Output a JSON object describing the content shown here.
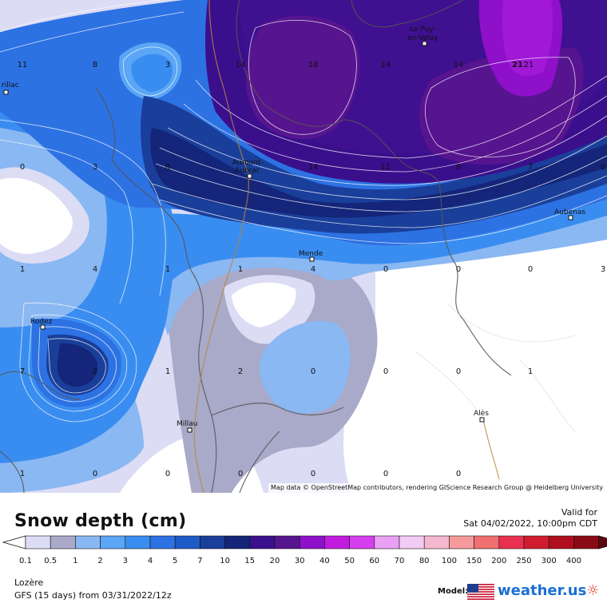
{
  "map": {
    "attribution": "Map data © OpenStreetMap contributors, rendering GIScience Research Group @ Heidelberg University",
    "cities": [
      {
        "name": "Le Puy-",
        "name2": "en-Velay"
      },
      {
        "name": "rillac",
        "name2": ""
      },
      {
        "name": "Aumont-",
        "name2": "Aubrac"
      },
      {
        "name": "Aubenas",
        "name2": ""
      },
      {
        "name": "Mende",
        "name2": ""
      },
      {
        "name": "Rodez",
        "name2": ""
      },
      {
        "name": "Millau",
        "name2": ""
      },
      {
        "name": "Alès",
        "name2": ""
      }
    ],
    "contour_values": [
      "11",
      "8",
      "3",
      "14",
      "18",
      "14",
      "14",
      "21",
      "21",
      "0",
      "3",
      "8",
      "14",
      "11",
      "8",
      "7",
      "0",
      "1",
      "4",
      "1",
      "1",
      "4",
      "0",
      "0",
      "0",
      "3",
      "7",
      "2",
      "1",
      "2",
      "0",
      "0",
      "0",
      "1",
      "1",
      "0",
      "0",
      "0",
      "0",
      "0",
      "0"
    ]
  },
  "legend": {
    "title": "Snow depth (cm)",
    "valid_for": "Valid for",
    "valid_time": "Sat 04/02/2022, 10:00pm CDT",
    "scale": [
      "0.1",
      "0.5",
      "1",
      "2",
      "3",
      "4",
      "5",
      "7",
      "10",
      "15",
      "20",
      "30",
      "40",
      "50",
      "60",
      "70",
      "80",
      "100",
      "150",
      "200",
      "250",
      "300",
      "400"
    ],
    "colors": [
      "#dcdcf5",
      "#a9a9c9",
      "#8ab8f2",
      "#5ba6f5",
      "#3a8df0",
      "#2d72e3",
      "#1f5bc8",
      "#1a3f9a",
      "#14257a",
      "#3a0f8c",
      "#57148f",
      "#8e10c9",
      "#c21be0",
      "#d63ff0",
      "#e9a0f5",
      "#f4cbf5",
      "#f4b8cf",
      "#f49a9a",
      "#f07070",
      "#e8314e",
      "#d11b2f",
      "#b00e1f",
      "#8a0a16",
      "#5e0610"
    ]
  },
  "footer": {
    "region": "Lozère",
    "model_run": "GFS (15 days) from 03/31/2022/12z",
    "model_label": "Model:",
    "brand": "weather.us"
  }
}
